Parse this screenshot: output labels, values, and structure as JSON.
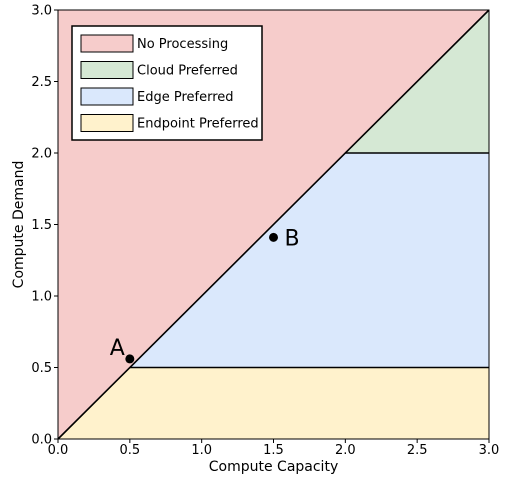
{
  "chart_data": {
    "type": "area",
    "xlabel": "Compute Capacity",
    "ylabel": "Compute Demand",
    "xlim": [
      0,
      3
    ],
    "ylim": [
      0,
      3
    ],
    "xticks": [
      "0.0",
      "0.5",
      "1.0",
      "1.5",
      "2.0",
      "2.5",
      "3.0"
    ],
    "yticks": [
      "0.0",
      "0.5",
      "1.0",
      "1.5",
      "2.0",
      "2.5",
      "3.0"
    ],
    "grid": false,
    "legend_position": "top-left",
    "regions": [
      {
        "name": "No Processing",
        "color": "#f6cccb",
        "polygon": [
          [
            0,
            0
          ],
          [
            3,
            3
          ],
          [
            0,
            3
          ]
        ]
      },
      {
        "name": "Cloud Preferred",
        "color": "#d5e8d4",
        "polygon": [
          [
            2,
            2
          ],
          [
            3,
            3
          ],
          [
            3,
            2
          ]
        ]
      },
      {
        "name": "Edge Preferred",
        "color": "#dae8fc",
        "polygon": [
          [
            0.5,
            0.5
          ],
          [
            2,
            2
          ],
          [
            3,
            2
          ],
          [
            3,
            0.5
          ]
        ]
      },
      {
        "name": "Endpoint Preferred",
        "color": "#fff2cc",
        "polygon": [
          [
            0,
            0
          ],
          [
            0.5,
            0.5
          ],
          [
            3,
            0.5
          ],
          [
            3,
            0
          ]
        ]
      }
    ],
    "boundaries": [
      [
        [
          0,
          0
        ],
        [
          3,
          3
        ]
      ],
      [
        [
          2,
          2
        ],
        [
          3,
          2
        ]
      ],
      [
        [
          0.5,
          0.5
        ],
        [
          3,
          0.5
        ]
      ]
    ],
    "points": [
      {
        "label": "A",
        "x": 0.5,
        "y": 0.56
      },
      {
        "label": "B",
        "x": 1.5,
        "y": 1.41
      }
    ]
  }
}
